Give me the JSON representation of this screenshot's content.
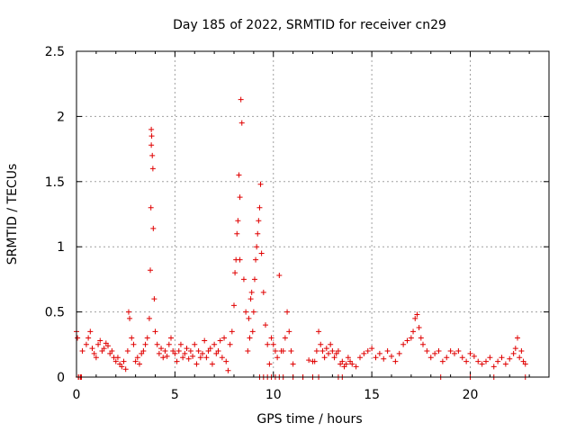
{
  "chart_data": {
    "type": "scatter",
    "title": "Day 185 of 2022, SRMTID for receiver cn29",
    "xlabel": "GPS time / hours",
    "ylabel": "SRMTID / TECUs",
    "xlim": [
      0,
      24
    ],
    "ylim": [
      0,
      2.5
    ],
    "xticks": [
      0,
      5,
      10,
      15,
      20
    ],
    "yticks": [
      0,
      0.5,
      1,
      1.5,
      2,
      2.5
    ],
    "grid": true,
    "marker": "+",
    "color": "#e00000",
    "series": [
      {
        "name": "SRMTID",
        "x": [
          0.0,
          0.05,
          0.1,
          0.2,
          0.3,
          0.5,
          0.6,
          0.7,
          0.8,
          0.9,
          1.0,
          1.1,
          1.2,
          1.3,
          1.4,
          1.5,
          1.6,
          1.7,
          1.8,
          1.9,
          2.0,
          2.1,
          2.2,
          2.3,
          2.4,
          2.5,
          2.6,
          2.65,
          2.7,
          2.8,
          2.9,
          3.0,
          3.1,
          3.2,
          3.3,
          3.4,
          3.5,
          3.6,
          3.7,
          3.75,
          3.78,
          3.8,
          3.82,
          3.85,
          3.88,
          3.9,
          3.95,
          4.0,
          4.1,
          4.2,
          4.3,
          4.4,
          4.5,
          4.6,
          4.7,
          4.8,
          4.9,
          5.0,
          5.1,
          5.2,
          5.3,
          5.4,
          5.5,
          5.6,
          5.7,
          5.8,
          5.9,
          6.0,
          6.1,
          6.2,
          6.3,
          6.4,
          6.5,
          6.6,
          6.7,
          6.8,
          6.9,
          7.0,
          7.1,
          7.2,
          7.3,
          7.4,
          7.5,
          7.6,
          7.7,
          7.8,
          7.9,
          8.0,
          8.05,
          8.1,
          8.15,
          8.2,
          8.25,
          8.3,
          8.35,
          8.4,
          8.5,
          8.6,
          8.7,
          8.75,
          8.8,
          8.85,
          8.9,
          8.95,
          9.0,
          9.05,
          9.1,
          9.15,
          9.2,
          9.25,
          9.3,
          9.35,
          9.4,
          9.5,
          9.6,
          9.7,
          9.8,
          9.9,
          10.0,
          10.1,
          10.2,
          10.3,
          10.4,
          10.5,
          10.6,
          10.7,
          10.8,
          10.9,
          11.0,
          11.5,
          11.8,
          12.0,
          12.1,
          12.2,
          12.3,
          12.4,
          12.5,
          12.6,
          12.7,
          12.8,
          12.9,
          13.0,
          13.1,
          13.2,
          13.3,
          13.4,
          13.5,
          13.6,
          13.7,
          13.8,
          13.9,
          14.0,
          14.2,
          14.4,
          14.6,
          14.8,
          15.0,
          15.2,
          15.4,
          15.6,
          15.8,
          16.0,
          16.2,
          16.4,
          16.6,
          16.8,
          17.0,
          17.1,
          17.2,
          17.3,
          17.4,
          17.5,
          17.6,
          17.8,
          18.0,
          18.2,
          18.4,
          18.6,
          18.8,
          19.0,
          19.2,
          19.4,
          19.6,
          19.8,
          20.0,
          20.2,
          20.4,
          20.6,
          20.8,
          21.0,
          21.2,
          21.4,
          21.6,
          21.8,
          22.0,
          22.2,
          22.3,
          22.4,
          22.5,
          22.6,
          22.7,
          22.8,
          0.1,
          0.2,
          0.25,
          9.3,
          9.5,
          9.7,
          9.9,
          10.1,
          10.3,
          10.5,
          11.0,
          11.5,
          12.0,
          12.3,
          13.3,
          13.5,
          18.5,
          20.0,
          21.2,
          22.8,
          3.8,
          8.3
        ],
        "y": [
          0.35,
          0.3,
          0.0,
          0.0,
          0.2,
          0.25,
          0.3,
          0.35,
          0.22,
          0.18,
          0.15,
          0.25,
          0.28,
          0.2,
          0.22,
          0.26,
          0.24,
          0.18,
          0.2,
          0.15,
          0.12,
          0.15,
          0.1,
          0.08,
          0.12,
          0.06,
          0.2,
          0.5,
          0.45,
          0.3,
          0.25,
          0.12,
          0.15,
          0.1,
          0.18,
          0.2,
          0.25,
          0.3,
          0.45,
          0.82,
          1.3,
          1.9,
          1.85,
          1.7,
          1.6,
          1.14,
          0.6,
          0.35,
          0.25,
          0.18,
          0.22,
          0.15,
          0.2,
          0.16,
          0.25,
          0.3,
          0.2,
          0.18,
          0.12,
          0.2,
          0.25,
          0.15,
          0.18,
          0.22,
          0.14,
          0.2,
          0.16,
          0.25,
          0.1,
          0.2,
          0.15,
          0.18,
          0.28,
          0.15,
          0.2,
          0.22,
          0.1,
          0.25,
          0.18,
          0.2,
          0.28,
          0.15,
          0.3,
          0.12,
          0.05,
          0.25,
          0.35,
          0.55,
          0.8,
          0.9,
          1.1,
          1.2,
          1.55,
          1.38,
          2.13,
          1.95,
          0.75,
          0.5,
          0.2,
          0.45,
          0.3,
          0.6,
          0.65,
          0.35,
          0.5,
          0.75,
          0.9,
          1.0,
          1.1,
          1.2,
          1.3,
          1.48,
          0.95,
          0.65,
          0.4,
          0.25,
          0.1,
          0.3,
          0.25,
          0.2,
          0.15,
          0.78,
          0.2,
          0.2,
          0.3,
          0.5,
          0.35,
          0.2,
          0.1,
          0.0,
          0.13,
          0.12,
          0.12,
          0.2,
          0.35,
          0.25,
          0.2,
          0.15,
          0.22,
          0.18,
          0.25,
          0.2,
          0.15,
          0.18,
          0.2,
          0.1,
          0.12,
          0.08,
          0.1,
          0.15,
          0.12,
          0.1,
          0.08,
          0.15,
          0.18,
          0.2,
          0.22,
          0.15,
          0.18,
          0.14,
          0.2,
          0.16,
          0.12,
          0.18,
          0.25,
          0.28,
          0.3,
          0.35,
          0.45,
          0.48,
          0.38,
          0.3,
          0.25,
          0.2,
          0.15,
          0.18,
          0.2,
          0.12,
          0.15,
          0.2,
          0.18,
          0.2,
          0.15,
          0.12,
          0.18,
          0.16,
          0.12,
          0.1,
          0.12,
          0.15,
          0.08,
          0.12,
          0.15,
          0.1,
          0.14,
          0.18,
          0.22,
          0.3,
          0.15,
          0.2,
          0.12,
          0.1,
          0.0,
          0.0,
          0.0,
          0.0,
          0.0,
          0.0,
          0.0,
          0.0,
          0.0,
          0.0,
          0.0,
          0.0,
          0.0,
          0.0,
          0.0,
          0.0,
          0.0,
          0.0,
          0.0,
          0.0,
          1.78,
          0.9
        ]
      }
    ]
  }
}
